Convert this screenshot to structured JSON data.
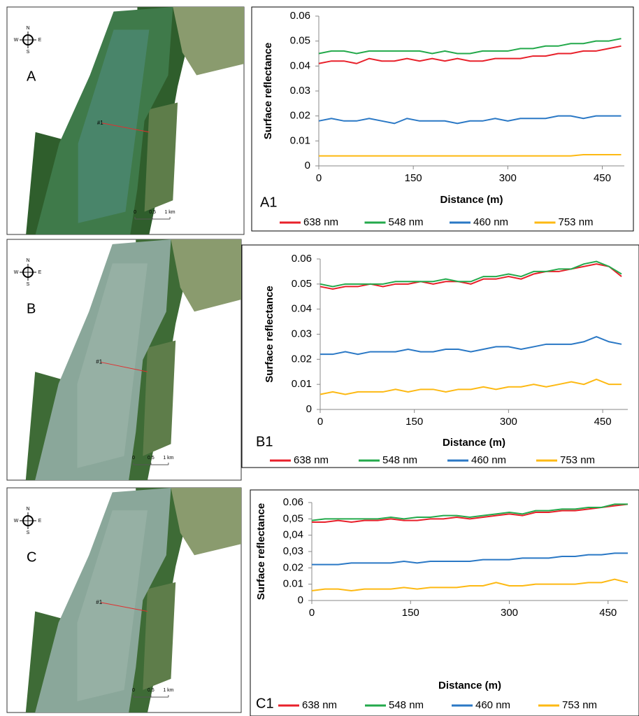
{
  "maps": [
    {
      "label": "A",
      "compass": [
        "N",
        "E",
        "S",
        "W"
      ],
      "transect": "#1",
      "scale": [
        "0",
        "0,5",
        "1 km"
      ]
    },
    {
      "label": "B",
      "compass": [
        "N",
        "E",
        "S",
        "W"
      ],
      "transect": "#1",
      "scale": [
        "0",
        "0,5",
        "1 km"
      ]
    },
    {
      "label": "C",
      "compass": [
        "N",
        "E",
        "S",
        "W"
      ],
      "transect": "#1",
      "scale": [
        "0",
        "0,5",
        "1 km"
      ]
    }
  ],
  "chart_data": [
    {
      "type": "line",
      "label": "A1",
      "x_label": "Distance (m)",
      "y_label": "Surface reflectance",
      "x": [
        0,
        20,
        40,
        60,
        80,
        100,
        120,
        140,
        160,
        180,
        200,
        220,
        240,
        260,
        280,
        300,
        320,
        340,
        360,
        380,
        400,
        420,
        440,
        460,
        480
      ],
      "xlim": [
        0,
        485
      ],
      "xticks": [
        0,
        150,
        300,
        450
      ],
      "ylim": [
        0,
        0.06
      ],
      "yticks": [
        0,
        0.01,
        0.02,
        0.03,
        0.04,
        0.05,
        0.06
      ],
      "series": [
        {
          "name": "638 nm",
          "color": "#e8202a",
          "values": [
            0.041,
            0.042,
            0.042,
            0.041,
            0.043,
            0.042,
            0.042,
            0.043,
            0.042,
            0.043,
            0.042,
            0.043,
            0.042,
            0.042,
            0.043,
            0.043,
            0.043,
            0.044,
            0.044,
            0.045,
            0.045,
            0.046,
            0.046,
            0.047,
            0.048
          ]
        },
        {
          "name": "548 nm",
          "color": "#23a94b",
          "values": [
            0.045,
            0.046,
            0.046,
            0.045,
            0.046,
            0.046,
            0.046,
            0.046,
            0.046,
            0.045,
            0.046,
            0.045,
            0.045,
            0.046,
            0.046,
            0.046,
            0.047,
            0.047,
            0.048,
            0.048,
            0.049,
            0.049,
            0.05,
            0.05,
            0.051
          ]
        },
        {
          "name": "460 nm",
          "color": "#2a78c5",
          "values": [
            0.018,
            0.019,
            0.018,
            0.018,
            0.019,
            0.018,
            0.017,
            0.019,
            0.018,
            0.018,
            0.018,
            0.017,
            0.018,
            0.018,
            0.019,
            0.018,
            0.019,
            0.019,
            0.019,
            0.02,
            0.02,
            0.019,
            0.02,
            0.02,
            0.02
          ]
        },
        {
          "name": "753 nm",
          "color": "#fdb913",
          "values": [
            0.004,
            0.004,
            0.004,
            0.004,
            0.004,
            0.004,
            0.004,
            0.004,
            0.004,
            0.004,
            0.004,
            0.004,
            0.004,
            0.004,
            0.004,
            0.004,
            0.004,
            0.004,
            0.004,
            0.004,
            0.004,
            0.0045,
            0.0045,
            0.0045,
            0.0045
          ]
        }
      ]
    },
    {
      "type": "line",
      "label": "B1",
      "x_label": "Distance (m)",
      "y_label": "Surface reflectance",
      "x": [
        0,
        20,
        40,
        60,
        80,
        100,
        120,
        140,
        160,
        180,
        200,
        220,
        240,
        260,
        280,
        300,
        320,
        340,
        360,
        380,
        400,
        420,
        440,
        460,
        480
      ],
      "xlim": [
        0,
        490
      ],
      "xticks": [
        0,
        150,
        300,
        450
      ],
      "ylim": [
        0,
        0.06
      ],
      "yticks": [
        0,
        0.01,
        0.02,
        0.03,
        0.04,
        0.05,
        0.06
      ],
      "series": [
        {
          "name": "638 nm",
          "color": "#e8202a",
          "values": [
            0.049,
            0.048,
            0.049,
            0.049,
            0.05,
            0.049,
            0.05,
            0.05,
            0.051,
            0.05,
            0.051,
            0.051,
            0.05,
            0.052,
            0.052,
            0.053,
            0.052,
            0.054,
            0.055,
            0.055,
            0.056,
            0.057,
            0.058,
            0.057,
            0.053
          ]
        },
        {
          "name": "548 nm",
          "color": "#23a94b",
          "values": [
            0.05,
            0.049,
            0.05,
            0.05,
            0.05,
            0.05,
            0.051,
            0.051,
            0.051,
            0.051,
            0.052,
            0.051,
            0.051,
            0.053,
            0.053,
            0.054,
            0.053,
            0.055,
            0.055,
            0.056,
            0.056,
            0.058,
            0.059,
            0.057,
            0.054
          ]
        },
        {
          "name": "460 nm",
          "color": "#2a78c5",
          "values": [
            0.022,
            0.022,
            0.023,
            0.022,
            0.023,
            0.023,
            0.023,
            0.024,
            0.023,
            0.023,
            0.024,
            0.024,
            0.023,
            0.024,
            0.025,
            0.025,
            0.024,
            0.025,
            0.026,
            0.026,
            0.026,
            0.027,
            0.029,
            0.027,
            0.026
          ]
        },
        {
          "name": "753 nm",
          "color": "#fdb913",
          "values": [
            0.006,
            0.007,
            0.006,
            0.007,
            0.007,
            0.007,
            0.008,
            0.007,
            0.008,
            0.008,
            0.007,
            0.008,
            0.008,
            0.009,
            0.008,
            0.009,
            0.009,
            0.01,
            0.009,
            0.01,
            0.011,
            0.01,
            0.012,
            0.01,
            0.01
          ]
        }
      ]
    },
    {
      "type": "line",
      "label": "C1",
      "x_label": "Distance (m)",
      "y_label": "Surface reflectance",
      "x": [
        0,
        20,
        40,
        60,
        80,
        100,
        120,
        140,
        160,
        180,
        200,
        220,
        240,
        260,
        280,
        300,
        320,
        340,
        360,
        380,
        400,
        420,
        440,
        460,
        480
      ],
      "xlim": [
        0,
        480
      ],
      "xticks": [
        0,
        150,
        300,
        450
      ],
      "ylim": [
        0,
        0.06
      ],
      "yticks": [
        0,
        {
          "value": 0.01,
          "label": "0.01"
        },
        {
          "value": 0.02,
          "label": "0.02"
        },
        {
          "value": 0.03,
          "label": "0,03"
        },
        {
          "value": 0.04,
          "label": "0,04"
        },
        {
          "value": 0.05,
          "label": "0,05"
        },
        {
          "value": 0.06,
          "label": "0.06"
        }
      ],
      "series": [
        {
          "name": "638 nm",
          "color": "#e8202a",
          "values": [
            0.048,
            0.048,
            0.049,
            0.048,
            0.049,
            0.049,
            0.05,
            0.049,
            0.049,
            0.05,
            0.05,
            0.051,
            0.05,
            0.051,
            0.052,
            0.053,
            0.052,
            0.054,
            0.054,
            0.055,
            0.055,
            0.056,
            0.057,
            0.058,
            0.059
          ]
        },
        {
          "name": "548 nm",
          "color": "#23a94b",
          "values": [
            0.049,
            0.05,
            0.05,
            0.05,
            0.05,
            0.05,
            0.051,
            0.05,
            0.051,
            0.051,
            0.052,
            0.052,
            0.051,
            0.052,
            0.053,
            0.054,
            0.053,
            0.055,
            0.055,
            0.056,
            0.056,
            0.057,
            0.057,
            0.059,
            0.059
          ]
        },
        {
          "name": "460 nm",
          "color": "#2a78c5",
          "values": [
            0.022,
            0.022,
            0.022,
            0.023,
            0.023,
            0.023,
            0.023,
            0.024,
            0.023,
            0.024,
            0.024,
            0.024,
            0.024,
            0.025,
            0.025,
            0.025,
            0.026,
            0.026,
            0.026,
            0.027,
            0.027,
            0.028,
            0.028,
            0.029,
            0.029
          ]
        },
        {
          "name": "753 nm",
          "color": "#fdb913",
          "values": [
            0.006,
            0.007,
            0.007,
            0.006,
            0.007,
            0.007,
            0.007,
            0.008,
            0.007,
            0.008,
            0.008,
            0.008,
            0.009,
            0.009,
            0.011,
            0.009,
            0.009,
            0.01,
            0.01,
            0.01,
            0.01,
            0.011,
            0.011,
            0.013,
            0.011
          ]
        }
      ]
    }
  ]
}
